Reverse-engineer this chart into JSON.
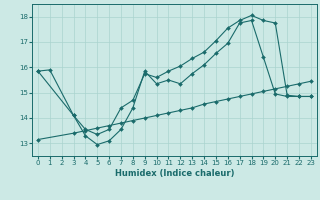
{
  "xlabel": "Humidex (Indice chaleur)",
  "background_color": "#cce9e5",
  "line_color": "#1a6b6b",
  "grid_color": "#aad4cf",
  "xlim": [
    -0.5,
    23.5
  ],
  "ylim": [
    12.5,
    18.5
  ],
  "yticks": [
    13,
    14,
    15,
    16,
    17,
    18
  ],
  "xticks": [
    0,
    1,
    2,
    3,
    4,
    5,
    6,
    7,
    8,
    9,
    10,
    11,
    12,
    13,
    14,
    15,
    16,
    17,
    18,
    19,
    20,
    21,
    22,
    23
  ],
  "line1_x": [
    0,
    1,
    3,
    4,
    5,
    6,
    7,
    8,
    9,
    10,
    11,
    12,
    13,
    14,
    15,
    16,
    17,
    18,
    19,
    20,
    21,
    22,
    23
  ],
  "line1_y": [
    15.85,
    15.9,
    14.1,
    13.3,
    12.95,
    13.1,
    13.55,
    14.4,
    15.85,
    15.35,
    15.5,
    15.35,
    15.75,
    16.1,
    16.55,
    16.95,
    17.75,
    17.85,
    16.4,
    14.95,
    14.85,
    14.85,
    14.85
  ],
  "line2_x": [
    0,
    3,
    4,
    5,
    6,
    7,
    8,
    9,
    10,
    11,
    12,
    13,
    14,
    15,
    16,
    17,
    18,
    19,
    20,
    21,
    22,
    23
  ],
  "line2_y": [
    15.85,
    14.1,
    13.55,
    13.35,
    13.55,
    14.4,
    14.7,
    15.75,
    15.6,
    15.85,
    16.05,
    16.35,
    16.6,
    17.05,
    17.55,
    17.85,
    18.05,
    17.85,
    17.75,
    14.9,
    14.85,
    14.85
  ],
  "line3_x": [
    0,
    3,
    4,
    5,
    6,
    7,
    8,
    9,
    10,
    11,
    12,
    13,
    14,
    15,
    16,
    17,
    18,
    19,
    20,
    21,
    22,
    23
  ],
  "line3_y": [
    13.15,
    13.4,
    13.5,
    13.6,
    13.7,
    13.8,
    13.9,
    14.0,
    14.1,
    14.2,
    14.3,
    14.4,
    14.55,
    14.65,
    14.75,
    14.85,
    14.95,
    15.05,
    15.15,
    15.25,
    15.35,
    15.45
  ]
}
